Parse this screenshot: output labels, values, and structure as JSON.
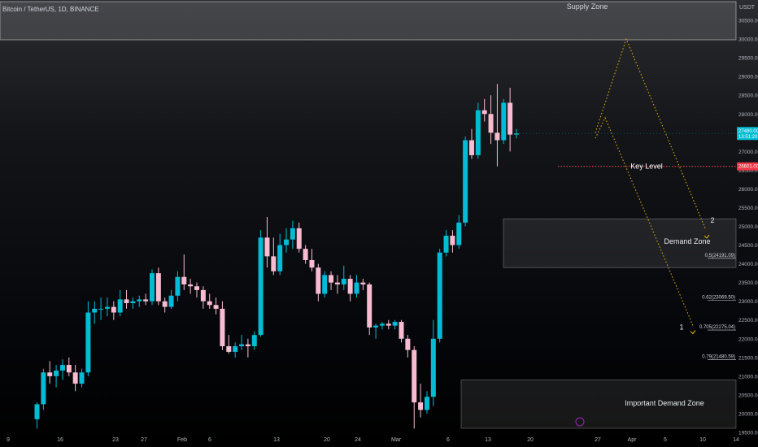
{
  "chart_data": {
    "type": "candlestick",
    "title": "Bitcoin / TetherUS, 1D, BINANCE",
    "currency": "USDT",
    "ylim": [
      19500,
      31000
    ],
    "yticks": [
      "30500.00",
      "30000.00",
      "29500.00",
      "29000.00",
      "28500.00",
      "28000.00",
      "27500.00",
      "27000.00",
      "26500.00",
      "26000.00",
      "25500.00",
      "25000.00",
      "24500.00",
      "24000.00",
      "23500.00",
      "23000.00",
      "22500.00",
      "22000.00",
      "21500.00",
      "21000.00",
      "20500.00",
      "20000.00",
      "19500.00"
    ],
    "xticks": [
      "9",
      "16",
      "23",
      "27",
      "Feb",
      "6",
      "13",
      "20",
      "24",
      "Mar",
      "6",
      "13",
      "20",
      "27",
      "Apr",
      "5",
      "10",
      "14"
    ],
    "colors": {
      "up": "#00bcd4",
      "down": "#f8bbd0",
      "zone": "#ffffff",
      "fib": "#f0b90b",
      "key_level": "#ff5252",
      "price_badge": "#00bcd4",
      "key_badge": "#f23645"
    },
    "price_badge": [
      "27480.00",
      "13:51:20"
    ],
    "key_level_badge": "26601.00",
    "candles": [
      {
        "o": 19850,
        "h": 20300,
        "l": 19600,
        "c": 20250
      },
      {
        "o": 20250,
        "h": 21200,
        "l": 20100,
        "c": 21100
      },
      {
        "o": 21100,
        "h": 21400,
        "l": 20800,
        "c": 21000
      },
      {
        "o": 21000,
        "h": 21300,
        "l": 20700,
        "c": 21150
      },
      {
        "o": 21150,
        "h": 21450,
        "l": 20900,
        "c": 21300
      },
      {
        "o": 21300,
        "h": 21500,
        "l": 21000,
        "c": 21100
      },
      {
        "o": 21100,
        "h": 21300,
        "l": 20600,
        "c": 20800
      },
      {
        "o": 20800,
        "h": 21200,
        "l": 20700,
        "c": 21100
      },
      {
        "o": 21100,
        "h": 23000,
        "l": 21000,
        "c": 22700
      },
      {
        "o": 22700,
        "h": 23000,
        "l": 22400,
        "c": 22800
      },
      {
        "o": 22800,
        "h": 23100,
        "l": 22500,
        "c": 22800
      },
      {
        "o": 22800,
        "h": 23100,
        "l": 22600,
        "c": 22850
      },
      {
        "o": 22850,
        "h": 23000,
        "l": 22500,
        "c": 22700
      },
      {
        "o": 22700,
        "h": 23300,
        "l": 22600,
        "c": 23050
      },
      {
        "o": 23050,
        "h": 23300,
        "l": 22800,
        "c": 22950
      },
      {
        "o": 22950,
        "h": 23100,
        "l": 22800,
        "c": 23000
      },
      {
        "o": 23000,
        "h": 23150,
        "l": 22850,
        "c": 23050
      },
      {
        "o": 23050,
        "h": 23200,
        "l": 22900,
        "c": 23000
      },
      {
        "o": 23000,
        "h": 23850,
        "l": 22900,
        "c": 23750
      },
      {
        "o": 23750,
        "h": 23900,
        "l": 22900,
        "c": 23000
      },
      {
        "o": 23000,
        "h": 23100,
        "l": 22700,
        "c": 22850
      },
      {
        "o": 22850,
        "h": 23300,
        "l": 22800,
        "c": 23150
      },
      {
        "o": 23150,
        "h": 23800,
        "l": 23000,
        "c": 23650
      },
      {
        "o": 23650,
        "h": 24250,
        "l": 23300,
        "c": 23450
      },
      {
        "o": 23450,
        "h": 23600,
        "l": 23200,
        "c": 23400
      },
      {
        "o": 23400,
        "h": 23500,
        "l": 23100,
        "c": 23300
      },
      {
        "o": 23300,
        "h": 23400,
        "l": 22800,
        "c": 23000
      },
      {
        "o": 23000,
        "h": 23200,
        "l": 22800,
        "c": 22900
      },
      {
        "o": 22900,
        "h": 23100,
        "l": 22650,
        "c": 22800
      },
      {
        "o": 22800,
        "h": 23000,
        "l": 21700,
        "c": 21800
      },
      {
        "o": 21800,
        "h": 22100,
        "l": 21600,
        "c": 21650
      },
      {
        "o": 21650,
        "h": 21900,
        "l": 21500,
        "c": 21800
      },
      {
        "o": 21800,
        "h": 22100,
        "l": 21700,
        "c": 21850
      },
      {
        "o": 21850,
        "h": 22000,
        "l": 21500,
        "c": 21800
      },
      {
        "o": 21800,
        "h": 22200,
        "l": 21700,
        "c": 22100
      },
      {
        "o": 22100,
        "h": 24900,
        "l": 22050,
        "c": 24700
      },
      {
        "o": 24700,
        "h": 25250,
        "l": 23900,
        "c": 24200
      },
      {
        "o": 24200,
        "h": 24700,
        "l": 23700,
        "c": 23800
      },
      {
        "o": 23800,
        "h": 24800,
        "l": 23700,
        "c": 24500
      },
      {
        "o": 24500,
        "h": 24950,
        "l": 24300,
        "c": 24650
      },
      {
        "o": 24650,
        "h": 25150,
        "l": 24400,
        "c": 24950
      },
      {
        "o": 24950,
        "h": 25100,
        "l": 24300,
        "c": 24400
      },
      {
        "o": 24400,
        "h": 24500,
        "l": 24000,
        "c": 24100
      },
      {
        "o": 24100,
        "h": 24400,
        "l": 23800,
        "c": 23900
      },
      {
        "o": 23900,
        "h": 24000,
        "l": 23000,
        "c": 23200
      },
      {
        "o": 23200,
        "h": 23800,
        "l": 23100,
        "c": 23700
      },
      {
        "o": 23700,
        "h": 23800,
        "l": 23300,
        "c": 23500
      },
      {
        "o": 23500,
        "h": 23700,
        "l": 23200,
        "c": 23450
      },
      {
        "o": 23450,
        "h": 23950,
        "l": 23300,
        "c": 23600
      },
      {
        "o": 23600,
        "h": 23700,
        "l": 23000,
        "c": 23200
      },
      {
        "o": 23200,
        "h": 23700,
        "l": 23100,
        "c": 23500
      },
      {
        "o": 23500,
        "h": 23600,
        "l": 23300,
        "c": 23450
      },
      {
        "o": 23450,
        "h": 23500,
        "l": 22100,
        "c": 22300
      },
      {
        "o": 22300,
        "h": 22400,
        "l": 22000,
        "c": 22350
      },
      {
        "o": 22350,
        "h": 22450,
        "l": 22250,
        "c": 22400
      },
      {
        "o": 22400,
        "h": 22500,
        "l": 22250,
        "c": 22350
      },
      {
        "o": 22350,
        "h": 22500,
        "l": 22250,
        "c": 22450
      },
      {
        "o": 22450,
        "h": 22500,
        "l": 21900,
        "c": 22000
      },
      {
        "o": 22000,
        "h": 22100,
        "l": 21500,
        "c": 21700
      },
      {
        "o": 21700,
        "h": 21800,
        "l": 19600,
        "c": 20300
      },
      {
        "o": 20300,
        "h": 20800,
        "l": 19900,
        "c": 20100
      },
      {
        "o": 20100,
        "h": 20600,
        "l": 20000,
        "c": 20450
      },
      {
        "o": 20450,
        "h": 22500,
        "l": 20200,
        "c": 22000
      },
      {
        "o": 22000,
        "h": 24400,
        "l": 21900,
        "c": 24300
      },
      {
        "o": 24300,
        "h": 24900,
        "l": 24200,
        "c": 24750
      },
      {
        "o": 24750,
        "h": 24900,
        "l": 24300,
        "c": 24500
      },
      {
        "o": 24500,
        "h": 25300,
        "l": 24400,
        "c": 25100
      },
      {
        "o": 25100,
        "h": 27400,
        "l": 25000,
        "c": 27300
      },
      {
        "o": 27300,
        "h": 27600,
        "l": 26800,
        "c": 26900
      },
      {
        "o": 26900,
        "h": 28300,
        "l": 26800,
        "c": 28100
      },
      {
        "o": 28100,
        "h": 28400,
        "l": 27800,
        "c": 28000
      },
      {
        "o": 28000,
        "h": 28500,
        "l": 27200,
        "c": 27500
      },
      {
        "o": 27500,
        "h": 28800,
        "l": 26600,
        "c": 27300
      },
      {
        "o": 27300,
        "h": 28400,
        "l": 27200,
        "c": 28300
      },
      {
        "o": 28300,
        "h": 28700,
        "l": 27000,
        "c": 27450
      },
      {
        "o": 27450,
        "h": 27600,
        "l": 27350,
        "c": 27480
      }
    ],
    "zones": [
      {
        "label": "Supply Zone",
        "low": 29980,
        "high": 31000
      },
      {
        "label": "Demand Zone",
        "low": 23900,
        "high": 25200
      },
      {
        "label": "Important Demand Zone",
        "low": 19560,
        "high": 20900
      }
    ],
    "key_level": {
      "label": "Key Level",
      "price": 26601
    },
    "fib_levels": [
      {
        "label": "0.5(24191.09)",
        "price": 24191.09
      },
      {
        "label": "0.62(23069.50)",
        "price": 23069.5
      },
      {
        "label": "0.705(22275.04)",
        "price": 22275.04
      },
      {
        "label": "0.79(21480.59)",
        "price": 21480.59
      }
    ],
    "wave_labels": [
      "2",
      "1"
    ]
  }
}
